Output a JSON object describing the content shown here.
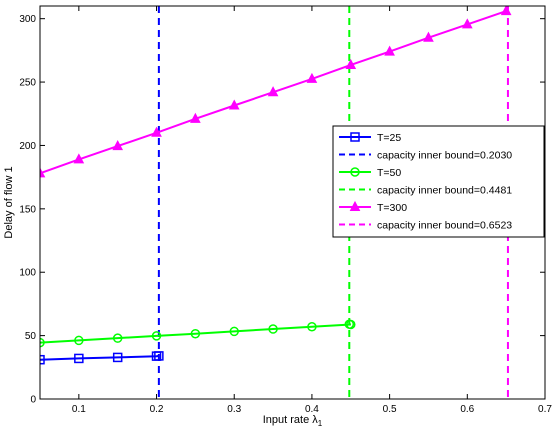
{
  "chart_data": {
    "type": "line",
    "xlabel": "Input rate λ",
    "xlabel_subscript": "1",
    "ylabel": "Delay of flow 1",
    "xlim": [
      0.05,
      0.7
    ],
    "ylim": [
      0,
      310
    ],
    "xticks": [
      0.1,
      0.2,
      0.3,
      0.4,
      0.5,
      0.6,
      0.7
    ],
    "xtick_labels": [
      "0.1",
      "0.2",
      "0.3",
      "0.4",
      "0.5",
      "0.6",
      "0.7"
    ],
    "yticks": [
      0,
      50,
      100,
      150,
      200,
      250,
      300
    ],
    "ytick_labels": [
      "0",
      "50",
      "100",
      "150",
      "200",
      "250",
      "300"
    ],
    "grid": false,
    "legend_position": "right",
    "series": [
      {
        "name": "T=25",
        "color": "#0000ff",
        "marker": "square",
        "x": [
          0.05,
          0.1,
          0.15,
          0.2,
          0.203
        ],
        "y": [
          31.0,
          32.0,
          32.8,
          33.8,
          34.0
        ]
      },
      {
        "name": "capacity inner bound=0.2030",
        "color": "#0000ff",
        "style": "dashed",
        "xline": 0.203
      },
      {
        "name": "T=50",
        "color": "#00ff00",
        "marker": "circle",
        "x": [
          0.05,
          0.1,
          0.15,
          0.2,
          0.25,
          0.3,
          0.35,
          0.4,
          0.45,
          0.4481
        ],
        "y": [
          44.5,
          46.2,
          48.0,
          49.8,
          51.5,
          53.3,
          55.2,
          57.0,
          58.8,
          59.0
        ]
      },
      {
        "name": "capacity inner bound=0.4481",
        "color": "#00ff00",
        "style": "dashed",
        "xline": 0.4481
      },
      {
        "name": "T=300",
        "color": "#ff00ff",
        "marker": "triangle",
        "x": [
          0.05,
          0.1,
          0.15,
          0.2,
          0.25,
          0.3,
          0.35,
          0.4,
          0.45,
          0.5,
          0.55,
          0.6,
          0.65
        ],
        "y": [
          178,
          189,
          199.5,
          210,
          221,
          231.5,
          242,
          252.5,
          263.5,
          274,
          285,
          295.5,
          306
        ]
      },
      {
        "name": "capacity inner bound=0.6523",
        "color": "#ff00ff",
        "style": "dashed",
        "xline": 0.6523
      }
    ]
  }
}
